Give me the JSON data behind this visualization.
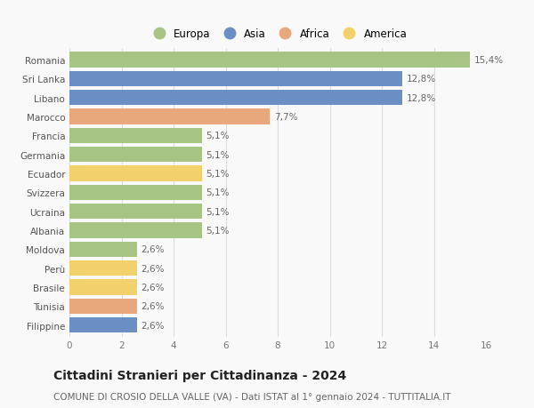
{
  "categories": [
    "Romania",
    "Sri Lanka",
    "Libano",
    "Marocco",
    "Francia",
    "Germania",
    "Ecuador",
    "Svizzera",
    "Ucraina",
    "Albania",
    "Moldova",
    "Perù",
    "Brasile",
    "Tunisia",
    "Filippine"
  ],
  "values": [
    15.4,
    12.8,
    12.8,
    7.7,
    5.1,
    5.1,
    5.1,
    5.1,
    5.1,
    5.1,
    2.6,
    2.6,
    2.6,
    2.6,
    2.6
  ],
  "labels": [
    "15,4%",
    "12,8%",
    "12,8%",
    "7,7%",
    "5,1%",
    "5,1%",
    "5,1%",
    "5,1%",
    "5,1%",
    "5,1%",
    "2,6%",
    "2,6%",
    "2,6%",
    "2,6%",
    "2,6%"
  ],
  "colors": [
    "#a8c485",
    "#6b8fc4",
    "#6b8fc4",
    "#e8a87c",
    "#a8c485",
    "#a8c485",
    "#f2d06b",
    "#a8c485",
    "#a8c485",
    "#a8c485",
    "#a8c485",
    "#f2d06b",
    "#f2d06b",
    "#e8a87c",
    "#6b8fc4"
  ],
  "legend_labels": [
    "Europa",
    "Asia",
    "Africa",
    "America"
  ],
  "legend_colors": [
    "#a8c485",
    "#6b8fc4",
    "#e8a87c",
    "#f2d06b"
  ],
  "xlim": [
    0,
    16
  ],
  "xticks": [
    0,
    2,
    4,
    6,
    8,
    10,
    12,
    14,
    16
  ],
  "title": "Cittadini Stranieri per Cittadinanza - 2024",
  "subtitle": "COMUNE DI CROSIO DELLA VALLE (VA) - Dati ISTAT al 1° gennaio 2024 - TUTTITALIA.IT",
  "background_color": "#f9f9f9",
  "grid_color": "#dddddd",
  "bar_height": 0.82,
  "title_fontsize": 10,
  "subtitle_fontsize": 7.5,
  "label_fontsize": 7.5,
  "tick_fontsize": 7.5,
  "legend_fontsize": 8.5
}
